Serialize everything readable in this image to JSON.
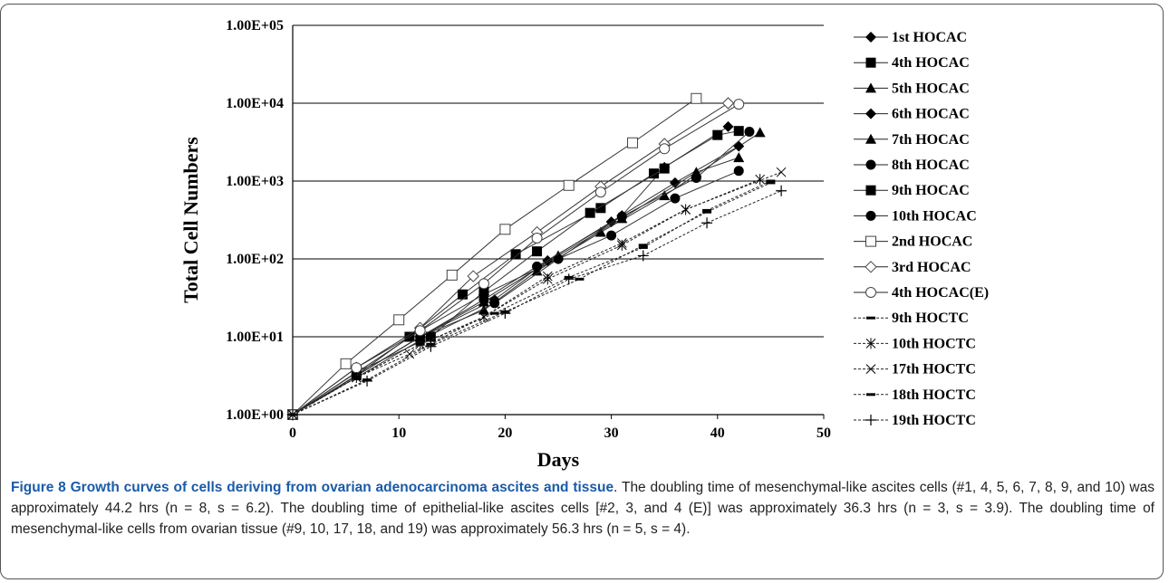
{
  "chart_data": {
    "type": "line",
    "xlabel": "Days",
    "ylabel": "Total Cell Numbers",
    "xlim": [
      0,
      50
    ],
    "ylim": [
      1,
      100000
    ],
    "yscale": "log",
    "grid": "horizontal",
    "legend_position": "right",
    "xticks": [
      "0",
      "10",
      "20",
      "30",
      "40",
      "50"
    ],
    "yticks": [
      "1.00E+00",
      "1.00E+01",
      "1.00E+02",
      "1.00E+03",
      "1.00E+04",
      "1.00E+05"
    ],
    "series": [
      {
        "name": "1st HOCAC",
        "marker": "diamond-filled",
        "line": "solid",
        "x": [
          0,
          12,
          18,
          25,
          31,
          35,
          41
        ],
        "y": [
          1,
          12,
          35,
          100,
          360,
          1500,
          5000
        ]
      },
      {
        "name": "4th HOCAC",
        "marker": "square-filled",
        "line": "solid",
        "x": [
          0,
          6,
          11,
          16,
          21,
          29,
          34,
          40,
          42
        ],
        "y": [
          1,
          3.2,
          10,
          35,
          115,
          450,
          1250,
          3900,
          4400
        ]
      },
      {
        "name": "5th HOCAC",
        "marker": "triangle-filled",
        "line": "solid",
        "x": [
          0,
          12,
          18,
          23,
          29,
          35,
          44
        ],
        "y": [
          1,
          10,
          22,
          70,
          220,
          650,
          4200
        ]
      },
      {
        "name": "6th HOCAC",
        "marker": "diamond-filled",
        "line": "solid",
        "x": [
          0,
          12,
          19,
          24,
          30,
          36,
          42
        ],
        "y": [
          1,
          10,
          30,
          95,
          300,
          950,
          2800
        ]
      },
      {
        "name": "7th HOCAC",
        "marker": "triangle-filled",
        "line": "solid",
        "x": [
          0,
          12,
          18,
          25,
          31,
          38,
          42
        ],
        "y": [
          1,
          10,
          28,
          110,
          330,
          1300,
          2000
        ]
      },
      {
        "name": "8th HOCAC",
        "marker": "circle-filled",
        "line": "solid",
        "x": [
          0,
          12,
          19,
          25,
          30,
          36,
          42
        ],
        "y": [
          1,
          9,
          27,
          100,
          200,
          600,
          1350
        ]
      },
      {
        "name": "9th HOCAC",
        "marker": "square-filled",
        "line": "solid",
        "x": [
          0,
          6,
          13,
          18,
          23,
          28,
          35
        ],
        "y": [
          1,
          3.5,
          10,
          38,
          125,
          390,
          1450
        ]
      },
      {
        "name": "10th HOCAC",
        "marker": "circle-filled",
        "line": "solid",
        "x": [
          0,
          12,
          18,
          23,
          31,
          38,
          43
        ],
        "y": [
          1,
          10,
          30,
          80,
          350,
          1100,
          4300
        ]
      },
      {
        "name": "2nd HOCAC",
        "marker": "square-open",
        "line": "solid",
        "x": [
          0,
          5,
          10,
          15,
          20,
          26,
          32,
          38
        ],
        "y": [
          1,
          4.5,
          16.5,
          62,
          240,
          880,
          3100,
          11500
        ]
      },
      {
        "name": "3rd HOCAC",
        "marker": "diamond-open",
        "line": "solid",
        "x": [
          0,
          6,
          12,
          17,
          23,
          29,
          35,
          41
        ],
        "y": [
          1,
          4,
          13,
          60,
          220,
          850,
          3000,
          10000
        ]
      },
      {
        "name": "4th HOCAC(E)",
        "marker": "circle-open",
        "line": "solid",
        "x": [
          0,
          6,
          12,
          18,
          23,
          29,
          35,
          42
        ],
        "y": [
          1,
          4,
          12,
          48,
          185,
          720,
          2600,
          9700
        ]
      },
      {
        "name": "9th HOCTC",
        "marker": "dash",
        "line": "dotted",
        "x": [
          0,
          6,
          12,
          19,
          26,
          33,
          39,
          45
        ],
        "y": [
          1,
          3,
          8,
          20,
          58,
          140,
          420,
          1000
        ]
      },
      {
        "name": "10th HOCTC",
        "marker": "star",
        "line": "dotted",
        "x": [
          0,
          6,
          12,
          18,
          24,
          31,
          37,
          44
        ],
        "y": [
          1,
          3,
          8,
          18,
          55,
          150,
          430,
          1050
        ]
      },
      {
        "name": "17th HOCTC",
        "marker": "x",
        "line": "dotted",
        "x": [
          0,
          6,
          11,
          18,
          24,
          31,
          37,
          46
        ],
        "y": [
          1,
          3,
          6,
          18,
          60,
          160,
          430,
          1300
        ]
      },
      {
        "name": "18th HOCTC",
        "marker": "dash",
        "line": "dotted",
        "x": [
          0,
          7,
          13,
          20,
          27,
          33,
          39,
          45
        ],
        "y": [
          1,
          2.8,
          8,
          21,
          55,
          150,
          400,
          950
        ]
      },
      {
        "name": "19th HOCTC",
        "marker": "plus",
        "line": "dotted",
        "x": [
          0,
          7,
          13,
          20,
          26,
          33,
          39,
          46
        ],
        "y": [
          1,
          2.7,
          7.5,
          20,
          55,
          110,
          290,
          750
        ]
      }
    ]
  },
  "caption": {
    "title": "Figure 8 Growth curves of cells deriving from ovarian adenocarcinoma ascites and tissue",
    "body": ". The doubling time of mesenchymal-like ascites cells (#1, 4, 5, 6, 7, 8, 9, and 10) was approximately 44.2 hrs (n = 8, s = 6.2). The doubling time of epithelial-like ascites cells [#2, 3, and 4 (E)] was approximately 36.3 hrs (n = 3, s = 3.9). The doubling time of mesenchymal-like cells from ovarian tissue (#9, 10, 17, 18, and 19) was approximately 56.3 hrs (n = 5, s = 4)."
  }
}
